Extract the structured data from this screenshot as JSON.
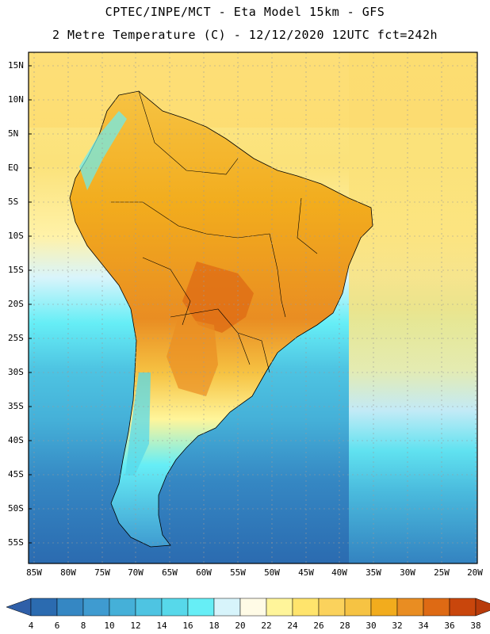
{
  "header": {
    "line1": "CPTEC/INPE/MCT -  Eta Model 15km - GFS",
    "line2": "2 Metre Temperature (C) - 12/12/2020 12UTC fct=242h"
  },
  "axes": {
    "lat_labels": [
      "15N",
      "10N",
      "5N",
      "EQ",
      "5S",
      "10S",
      "15S",
      "20S",
      "25S",
      "30S",
      "35S",
      "40S",
      "45S",
      "50S",
      "55S"
    ],
    "lon_labels": [
      "85W",
      "80W",
      "75W",
      "70W",
      "65W",
      "60W",
      "55W",
      "50W",
      "45W",
      "40W",
      "35W",
      "30W",
      "25W",
      "20W"
    ]
  },
  "colorbar": {
    "labels": [
      "4",
      "6",
      "8",
      "10",
      "12",
      "14",
      "16",
      "18",
      "20",
      "22",
      "24",
      "26",
      "28",
      "30",
      "32",
      "34",
      "36",
      "38"
    ],
    "colors": [
      "#2b6bb0",
      "#3587c3",
      "#3f9bd0",
      "#45b0d8",
      "#4ec4e2",
      "#57d8ea",
      "#66eef6",
      "#d7f4fb",
      "#fffbe6",
      "#fff59a",
      "#ffe46c",
      "#fbd25c",
      "#f6c343",
      "#f2ac1d",
      "#e98d22",
      "#de6a14",
      "#c9460c"
    ],
    "under_color": "#2f5fa8",
    "over_color": "#b83b0a"
  }
}
